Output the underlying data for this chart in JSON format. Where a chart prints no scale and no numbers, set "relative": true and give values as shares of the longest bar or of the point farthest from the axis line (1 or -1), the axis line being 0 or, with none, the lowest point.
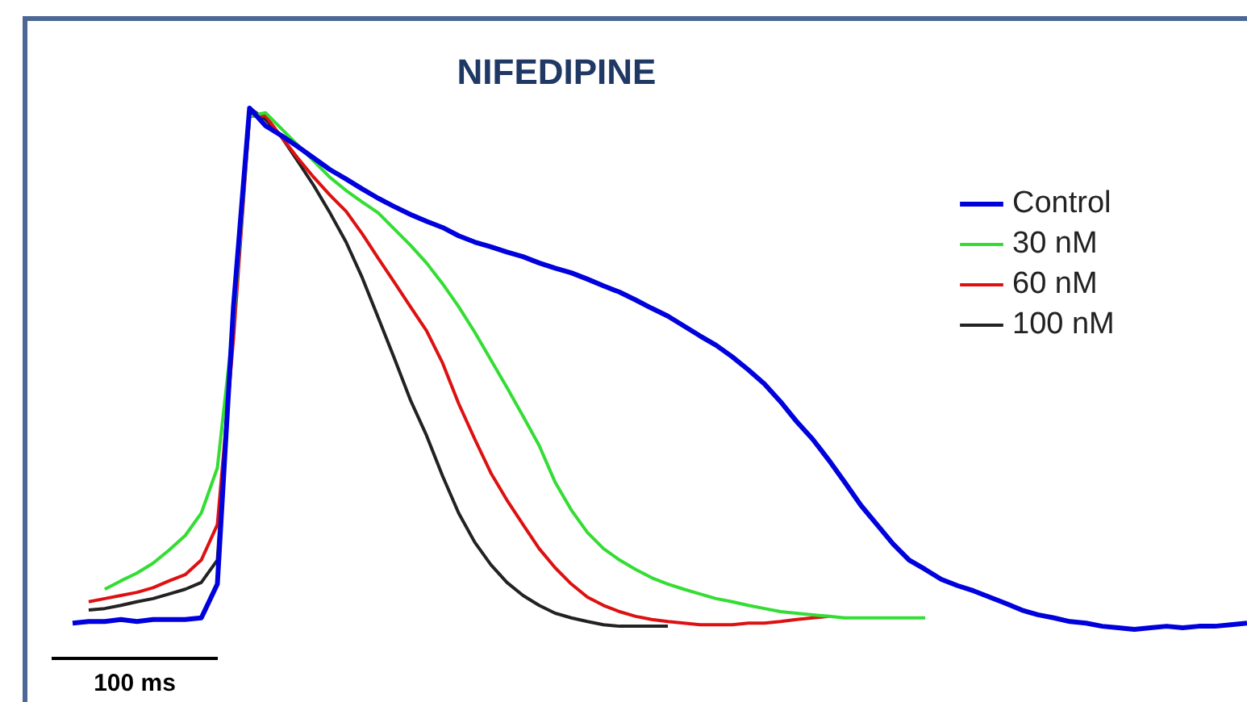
{
  "chart_data": {
    "type": "line",
    "title": "NIFEDIPINE",
    "relative": true,
    "legend": "top right",
    "annotations": [
      "100 ms"
    ],
    "categories": [
      null,
      null,
      null,
      null,
      null,
      null,
      null,
      null,
      null,
      null,
      null,
      null,
      null,
      null,
      null,
      null,
      null,
      null,
      null,
      null,
      null,
      null,
      null,
      null,
      null,
      null,
      null,
      null,
      null,
      null,
      null,
      null,
      null,
      null,
      null,
      null,
      null,
      null,
      null,
      null,
      null,
      null,
      null,
      null,
      null,
      null,
      null,
      null,
      null,
      null,
      null,
      null,
      null,
      null,
      null,
      null,
      null,
      null,
      null,
      null,
      null,
      null,
      null,
      null,
      null,
      null,
      null,
      null,
      null,
      null,
      null,
      null,
      null,
      null
    ],
    "series": [
      {
        "name": "Control",
        "color": "#0000dd",
        "values": [
          0.012,
          0.015,
          0.015,
          0.019,
          0.015,
          0.019,
          0.019,
          0.019,
          0.022,
          0.087,
          0.619,
          1,
          0.966,
          0.947,
          0.926,
          0.904,
          0.882,
          0.864,
          0.845,
          0.827,
          0.811,
          0.796,
          0.783,
          0.771,
          0.755,
          0.743,
          0.734,
          0.724,
          0.715,
          0.703,
          0.693,
          0.684,
          0.672,
          0.659,
          0.647,
          0.632,
          0.616,
          0.601,
          0.582,
          0.563,
          0.545,
          0.523,
          0.498,
          0.471,
          0.437,
          0.399,
          0.365,
          0.325,
          0.282,
          0.238,
          0.201,
          0.164,
          0.133,
          0.115,
          0.096,
          0.084,
          0.074,
          0.062,
          0.05,
          0.037,
          0.028,
          0.022,
          0.015,
          0.012,
          0.006,
          0.003,
          0,
          0.003,
          0.006,
          0.003,
          0.006,
          0.006,
          0.009,
          0.012
        ]
      },
      {
        "name": "30 nM",
        "color": "#33dd33",
        "values": [
          null,
          null,
          0.077,
          0.093,
          0.108,
          0.127,
          0.152,
          0.18,
          0.223,
          0.31,
          0.588,
          0.985,
          0.991,
          0.96,
          0.929,
          0.898,
          0.867,
          0.842,
          0.82,
          0.799,
          0.768,
          0.737,
          0.703,
          0.663,
          0.619,
          0.57,
          0.517,
          0.464,
          0.409,
          0.353,
          0.282,
          0.229,
          0.186,
          0.155,
          0.133,
          0.115,
          0.099,
          0.087,
          0.077,
          0.068,
          0.059,
          0.053,
          0.046,
          0.04,
          0.034,
          0.031,
          0.028,
          0.025,
          0.022,
          0.022,
          0.022,
          0.022,
          0.022,
          0.022,
          null,
          null,
          null,
          null,
          null,
          null,
          null,
          null,
          null,
          null,
          null,
          null,
          null,
          null,
          null,
          null,
          null,
          null,
          null,
          null
        ]
      },
      {
        "name": "60 nM",
        "color": "#dd1111",
        "values": [
          null,
          0.053,
          0.059,
          0.065,
          0.071,
          0.08,
          0.093,
          0.105,
          0.133,
          0.201,
          0.557,
          0.985,
          0.985,
          0.944,
          0.904,
          0.867,
          0.833,
          0.802,
          0.759,
          0.712,
          0.666,
          0.619,
          0.573,
          0.511,
          0.433,
          0.365,
          0.3,
          0.248,
          0.201,
          0.155,
          0.118,
          0.087,
          0.062,
          0.046,
          0.034,
          0.025,
          0.019,
          0.015,
          0.012,
          0.009,
          0.009,
          0.009,
          0.012,
          0.012,
          0.015,
          0.019,
          0.022,
          0.025,
          null,
          null,
          null,
          null,
          null,
          null,
          null,
          null,
          null,
          null,
          null,
          null,
          null,
          null,
          null,
          null,
          null,
          null,
          null,
          null,
          null,
          null,
          null,
          null,
          null,
          null
        ]
      },
      {
        "name": "100 nM",
        "color": "#222222",
        "values": [
          null,
          0.037,
          0.04,
          0.046,
          0.053,
          0.059,
          0.068,
          0.077,
          0.09,
          0.133,
          0.588,
          1,
          0.978,
          0.944,
          0.898,
          0.851,
          0.799,
          0.743,
          0.675,
          0.598,
          0.52,
          0.44,
          0.372,
          0.294,
          0.223,
          0.167,
          0.124,
          0.09,
          0.065,
          0.046,
          0.031,
          0.022,
          0.015,
          0.009,
          0.006,
          0.006,
          0.006,
          0.006,
          null,
          null,
          null,
          null,
          null,
          null,
          null,
          null,
          null,
          null,
          null,
          null,
          null,
          null,
          null,
          null,
          null,
          null,
          null,
          null,
          null,
          null,
          null,
          null,
          null,
          null,
          null,
          null,
          null,
          null,
          null,
          null,
          null,
          null,
          null,
          null
        ]
      }
    ]
  }
}
